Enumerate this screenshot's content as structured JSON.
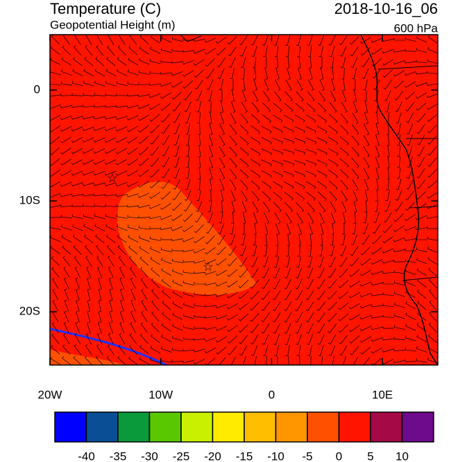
{
  "header": {
    "title": "Temperature (C)",
    "subtitle": "Geopotential Height (m)",
    "date": "2018-10-16_06",
    "level": "600 hPa"
  },
  "map": {
    "xlim": [
      -20,
      15
    ],
    "ylim": [
      -24.8,
      5
    ],
    "lon_ticks": [
      {
        "value": -20,
        "label": "20W"
      },
      {
        "value": -10,
        "label": "10W"
      },
      0,
      {
        "value": 10,
        "label": "10E"
      }
    ],
    "lat_ticks": [
      0,
      {
        "value": -10,
        "label": "10S"
      },
      {
        "value": -20,
        "label": "20S"
      }
    ]
  },
  "colorbar": {
    "levels": [
      -40,
      -35,
      -30,
      -25,
      -20,
      -15,
      -10,
      -5,
      0,
      5,
      10
    ],
    "colors": [
      "#0000ff",
      "#0a4f96",
      "#0a9a3c",
      "#5ac800",
      "#c8f000",
      "#ffeb00",
      "#ffbe00",
      "#ff9600",
      "#ff5000",
      "#ff1400",
      "#a50a46",
      "#6e0a8c"
    ]
  }
}
